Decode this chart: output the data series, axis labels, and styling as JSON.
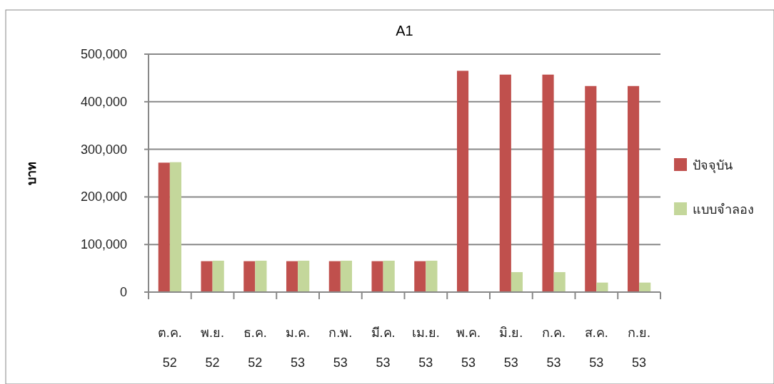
{
  "chart_data": {
    "type": "bar",
    "title": "A1",
    "ylabel": "บาท",
    "categories": [
      "ต.ค. 52",
      "พ.ย. 52",
      "ธ.ค. 52",
      "ม.ค. 53",
      "ก.พ. 53",
      "มี.ค. 53",
      "เม.ย. 53",
      "พ.ค. 53",
      "มิ.ย. 53",
      "ก.ค. 53",
      "ส.ค. 53",
      "ก.ย. 53"
    ],
    "series": [
      {
        "name": "ปัจจุบัน",
        "color": "#c0504d",
        "values": [
          272000,
          65000,
          65000,
          65000,
          65000,
          65000,
          65000,
          465000,
          457000,
          457000,
          433000,
          433000
        ]
      },
      {
        "name": "แบบจำลอง",
        "color": "#c4d79b",
        "values": [
          273000,
          66000,
          66000,
          66000,
          66000,
          66000,
          66000,
          0,
          42000,
          42000,
          20000,
          20000
        ]
      }
    ],
    "ylim": [
      0,
      500000
    ],
    "yticks": [
      {
        "value": 0,
        "label": "0"
      },
      {
        "value": 100000,
        "label": "100,000"
      },
      {
        "value": 200000,
        "label": "200,000"
      },
      {
        "value": 300000,
        "label": "300,000"
      },
      {
        "value": 400000,
        "label": "400,000"
      },
      {
        "value": 500000,
        "label": "500,000"
      }
    ],
    "grid": "y",
    "legend": "right"
  }
}
